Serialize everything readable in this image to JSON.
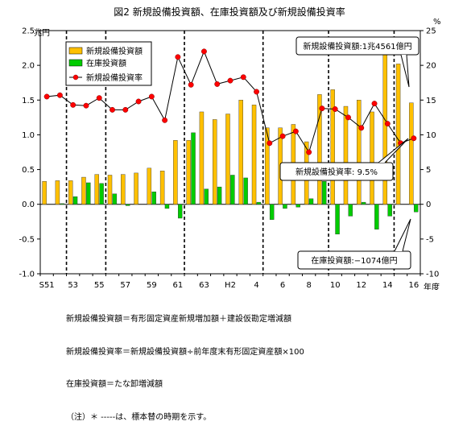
{
  "chart_data": {
    "type": "bar",
    "title": "図2 新規設備投資額、在庫投資額及び新規設備投資率",
    "left_unit": "兆円",
    "right_unit": "%",
    "x_unit": "年度",
    "ylim_left": [
      -1.0,
      2.5
    ],
    "ylim_right": [
      -10,
      25
    ],
    "left_ticks": [
      "-1.0",
      "-0.5",
      "0.0",
      "0.5",
      "1.0",
      "1.5",
      "2.0",
      "2.5"
    ],
    "right_ticks": [
      "-10",
      "-5",
      "0",
      "5",
      "10",
      "15",
      "20",
      "25"
    ],
    "x_tick_labels": [
      "S51",
      "53",
      "55",
      "57",
      "59",
      "61",
      "63",
      "H2",
      "4",
      "6",
      "8",
      "10",
      "12",
      "14",
      "16"
    ],
    "categories": [
      "S51",
      "52",
      "53",
      "54",
      "55",
      "56",
      "57",
      "58",
      "59",
      "60",
      "61",
      "62",
      "63",
      "H1",
      "H2",
      "3",
      "4",
      "5",
      "6",
      "7",
      "8",
      "9",
      "10",
      "11",
      "12",
      "13",
      "14",
      "15",
      "16"
    ],
    "series": [
      {
        "name": "新規設備投資額",
        "kind": "bar",
        "color": "#ffc000",
        "values": [
          0.33,
          0.34,
          0.34,
          0.39,
          0.43,
          0.42,
          0.43,
          0.45,
          0.52,
          0.48,
          0.92,
          0.92,
          1.33,
          1.22,
          1.3,
          1.5,
          1.43,
          1.1,
          1.1,
          1.15,
          0.9,
          1.58,
          1.65,
          1.41,
          1.5,
          1.33,
          2.15,
          2.02,
          1.46
        ]
      },
      {
        "name": "在庫投資額",
        "kind": "bar",
        "color": "#00cc00",
        "values": [
          0.0,
          0.01,
          0.11,
          0.31,
          0.3,
          0.15,
          -0.02,
          0.0,
          0.18,
          -0.06,
          -0.2,
          1.03,
          0.22,
          0.25,
          0.42,
          0.38,
          0.03,
          -0.22,
          -0.06,
          -0.04,
          0.08,
          0.33,
          -0.43,
          -0.17,
          0.03,
          -0.36,
          -0.17,
          0.0,
          -0.11
        ]
      },
      {
        "name": "新規設備投資率",
        "kind": "line",
        "axis": "right",
        "color": "#ff0000",
        "values": [
          15.5,
          15.7,
          14.3,
          14.2,
          15.3,
          13.6,
          13.6,
          14.8,
          15.5,
          12.1,
          21.2,
          17.2,
          22.0,
          17.3,
          17.8,
          18.3,
          16.2,
          8.8,
          9.8,
          10.5,
          7.5,
          13.8,
          13.7,
          12.5,
          11.0,
          14.5,
          11.6,
          8.8,
          9.5
        ]
      }
    ],
    "dashed_after_category": [
      "52",
      "55",
      "61",
      "4",
      "9",
      "14"
    ],
    "callouts": [
      {
        "text": "新規設備投資額:1兆4561億円"
      },
      {
        "text": "新規設備投資率: 9.5%"
      },
      {
        "text": "在庫投資額:−1074億円"
      }
    ],
    "legend_position": "top-left"
  },
  "notes": [
    "新規設備投資額＝有形固定資産新規増加額＋建設仮勘定増減額",
    "新規設備投資率＝新規設備投資額÷前年度末有形固定資産額×100",
    "在庫投資額＝たな卸増減額",
    "（注）＊ -----は、標本替の時期を示す。"
  ]
}
